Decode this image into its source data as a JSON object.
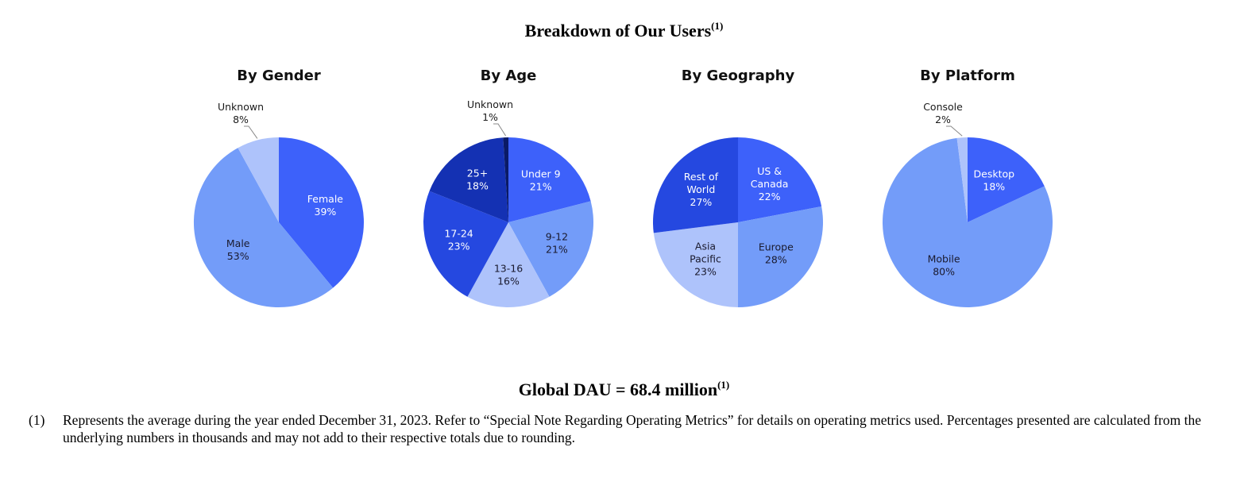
{
  "page": {
    "title": "Breakdown of Our Users",
    "title_note": "(1)",
    "dau": "Global DAU = 68.4 million",
    "dau_note": "(1)",
    "footnote_mark": "(1)",
    "footnote_text": "Represents the average during the year ended December 31, 2023. Refer to “Special Note Regarding Operating Metrics” for details on operating metrics used. Percentages presented are calculated from the underlying numbers in thousands and may not add to their respective totals due to rounding."
  },
  "chart_data": [
    {
      "type": "pie",
      "title": "By Gender",
      "slices": [
        {
          "name": "Female",
          "label": [
            "Female",
            "39%"
          ],
          "value": 39,
          "color": "#3d61fa",
          "text_color": "#ffffff"
        },
        {
          "name": "Male",
          "label": [
            "Male",
            "53%"
          ],
          "value": 53,
          "color": "#739cf9",
          "text_color": "#1a1a2e"
        },
        {
          "name": "Unknown",
          "label": [
            "Unknown",
            "8%"
          ],
          "value": 8,
          "color": "#aec3fb",
          "text_color": "#1a1a1a",
          "outside": true
        }
      ]
    },
    {
      "type": "pie",
      "title": "By Age",
      "slices": [
        {
          "name": "Under 9",
          "label": [
            "Under 9",
            "21%"
          ],
          "value": 21,
          "color": "#3d61fa",
          "text_color": "#ffffff"
        },
        {
          "name": "9-12",
          "label": [
            "9-12",
            "21%"
          ],
          "value": 21,
          "color": "#739cf9",
          "text_color": "#1a1a2e"
        },
        {
          "name": "13-16",
          "label": [
            "13-16",
            "16%"
          ],
          "value": 16,
          "color": "#aec3fb",
          "text_color": "#1a1a2e"
        },
        {
          "name": "17-24",
          "label": [
            "17-24",
            "23%"
          ],
          "value": 23,
          "color": "#2548e0",
          "text_color": "#ffffff"
        },
        {
          "name": "25+",
          "label": [
            "25+",
            "18%"
          ],
          "value": 18,
          "color": "#1431b3",
          "text_color": "#ffffff"
        },
        {
          "name": "Unknown",
          "label": [
            "Unknown",
            "1%"
          ],
          "value": 1,
          "color": "#0a1a66",
          "text_color": "#1a1a1a",
          "outside": true
        }
      ]
    },
    {
      "type": "pie",
      "title": "By Geography",
      "slices": [
        {
          "name": "US & Canada",
          "label": [
            "US &",
            "Canada",
            "22%"
          ],
          "value": 22,
          "color": "#3d61fa",
          "text_color": "#ffffff"
        },
        {
          "name": "Europe",
          "label": [
            "Europe",
            "28%"
          ],
          "value": 28,
          "color": "#739cf9",
          "text_color": "#1a1a2e"
        },
        {
          "name": "Asia Pacific",
          "label": [
            "Asia",
            "Pacific",
            "23%"
          ],
          "value": 23,
          "color": "#aec3fb",
          "text_color": "#1a1a2e"
        },
        {
          "name": "Rest of World",
          "label": [
            "Rest of",
            "World",
            "27%"
          ],
          "value": 27,
          "color": "#2548e0",
          "text_color": "#ffffff"
        }
      ]
    },
    {
      "type": "pie",
      "title": "By Platform",
      "slices": [
        {
          "name": "Desktop",
          "label": [
            "Desktop",
            "18%"
          ],
          "value": 18,
          "color": "#3d61fa",
          "text_color": "#ffffff"
        },
        {
          "name": "Mobile",
          "label": [
            "Mobile",
            "80%"
          ],
          "value": 80,
          "color": "#739cf9",
          "text_color": "#1a1a2e"
        },
        {
          "name": "Console",
          "label": [
            "Console",
            "2%"
          ],
          "value": 2,
          "color": "#aec3fb",
          "text_color": "#1a1a1a",
          "outside": true
        }
      ]
    }
  ]
}
